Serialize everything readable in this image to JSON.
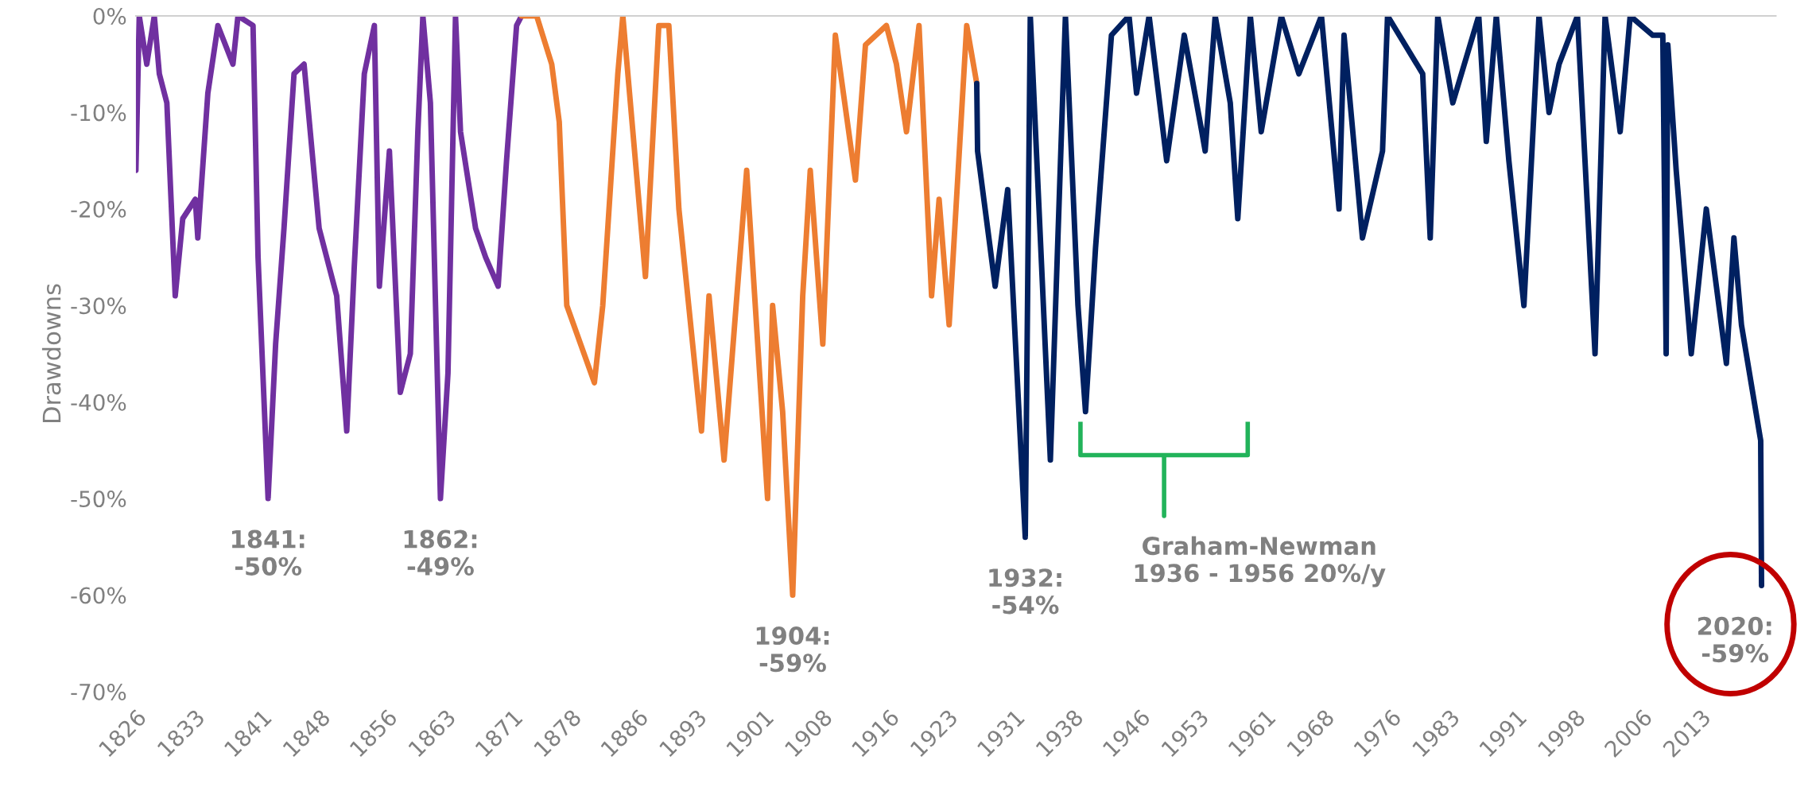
{
  "chart_data": {
    "type": "line",
    "ylabel": "Drawdowns",
    "series": [
      {
        "color": "#7030a0",
        "x": [
          1826.0,
          1826.4,
          1827.3,
          1828.2,
          1828.8,
          1829.7,
          1830.7,
          1831.6,
          1833.1,
          1833.4,
          1834.6,
          1835.8,
          1837.6,
          1838.2,
          1840.0,
          1840.6,
          1841.8,
          1842.7,
          1843.7,
          1844.9,
          1846.1,
          1847.9,
          1850.0,
          1851.2,
          1852.1,
          1853.3,
          1854.5,
          1855.1,
          1856.3,
          1857.6,
          1858.8,
          1859.7,
          1860.3,
          1861.2,
          1862.4,
          1863.3,
          1864.2,
          1864.8,
          1866.6,
          1867.8,
          1869.3,
          1870.3,
          1871.5,
          1872.1
        ],
        "values": [
          -16,
          0,
          -5,
          0,
          -6,
          -9,
          -29,
          -21,
          -19,
          -23,
          -8,
          -1,
          -5,
          0,
          -1,
          -25,
          -50,
          -34,
          -22,
          -6,
          -5,
          -22,
          -29,
          -43,
          -26,
          -6,
          -1,
          -28,
          -14,
          -39,
          -35,
          -12,
          0,
          -9,
          -50,
          -37,
          0,
          -12,
          -22,
          -25,
          -28,
          -15,
          -1,
          0
        ]
      },
      {
        "color": "#ed7d31",
        "x": [
          1872.1,
          1873.9,
          1875.7,
          1876.6,
          1877.5,
          1880.8,
          1881.8,
          1883.6,
          1884.2,
          1886.9,
          1888.5,
          1889.7,
          1890.9,
          1893.6,
          1894.5,
          1896.3,
          1899.0,
          1901.5,
          1902.1,
          1903.3,
          1904.5,
          1905.7,
          1906.6,
          1908.1,
          1909.6,
          1912.0,
          1913.2,
          1915.7,
          1916.9,
          1918.1,
          1919.6,
          1921.1,
          1922.0,
          1923.2,
          1925.3,
          1926.5
        ],
        "values": [
          0,
          0,
          -5,
          -11,
          -30,
          -38,
          -30,
          -6,
          0,
          -27,
          -1,
          -1,
          -20,
          -43,
          -29,
          -46,
          -16,
          -50,
          -30,
          -41,
          -60,
          -29,
          -16,
          -34,
          -2,
          -17,
          -3,
          -1,
          -5,
          -12,
          -1,
          -29,
          -19,
          -32,
          -1,
          -7
        ]
      },
      {
        "color": "#002060",
        "x": [
          1926.5,
          1926.6,
          1928.7,
          1930.2,
          1932.3,
          1932.9,
          1935.3,
          1937.1,
          1938.6,
          1939.5,
          1940.7,
          1942.6,
          1944.7,
          1945.6,
          1947.1,
          1949.2,
          1951.3,
          1953.4,
          1953.8,
          1955.0,
          1956.8,
          1957.7,
          1959.2,
          1960.5,
          1962.9,
          1965.0,
          1967.7,
          1969.8,
          1970.4,
          1972.6,
          1975.0,
          1975.6,
          1979.8,
          1980.7,
          1981.6,
          1983.4,
          1986.5,
          1987.4,
          1988.6,
          1990.1,
          1991.9,
          1993.7,
          1994.9,
          1996.1,
          1998.3,
          2000.4,
          2001.6,
          2003.4,
          2004.6,
          2007.3,
          2008.5,
          2008.9,
          2009.1,
          2010.1,
          2011.9,
          2013.7,
          2016.1,
          2017.0,
          2017.9,
          2020.2,
          2020.3
        ],
        "values": [
          -7,
          -14,
          -28,
          -18,
          -54,
          0,
          -46,
          0,
          -30,
          -41,
          -24,
          -2,
          0,
          -8,
          0,
          -15,
          -2,
          -12,
          -14,
          0,
          -9,
          -21,
          0,
          -12,
          0,
          -6,
          0,
          -20,
          -2,
          -23,
          -14,
          0,
          -6,
          -23,
          0,
          -9,
          0,
          -13,
          0,
          -15,
          -30,
          0,
          -10,
          -5,
          0,
          -35,
          0,
          -12,
          0,
          -2,
          -2,
          -35,
          -3,
          -16,
          -35,
          -20,
          -36,
          -23,
          -32,
          -44,
          -59
        ]
      }
    ],
    "xlim": [
      1826,
      2022
    ],
    "ylim": [
      -70,
      0
    ],
    "xticks": [
      1826,
      1833,
      1841,
      1848,
      1856,
      1863,
      1871,
      1878,
      1886,
      1893,
      1901,
      1908,
      1916,
      1923,
      1931,
      1938,
      1946,
      1953,
      1961,
      1968,
      1976,
      1983,
      1991,
      1998,
      2006,
      2013
    ],
    "yticks": [
      {
        "value": 0,
        "label": "0%"
      },
      {
        "value": -10,
        "label": "-10%"
      },
      {
        "value": -20,
        "label": "-20%"
      },
      {
        "value": -30,
        "label": "-30%"
      },
      {
        "value": -40,
        "label": "-40%"
      },
      {
        "value": -50,
        "label": "-50%"
      },
      {
        "value": -60,
        "label": "-60%"
      },
      {
        "value": -70,
        "label": "-70%"
      }
    ],
    "grid": false,
    "marker": "none",
    "line_style": "solid",
    "annotations": [
      {
        "text": "1841:\n-50%",
        "x": 1841.8,
        "y": -50
      },
      {
        "text": "1862:\n-49%",
        "x": 1862.4,
        "y": -50
      },
      {
        "text": "1904:\n-59%",
        "x": 1904.5,
        "y": -60
      },
      {
        "text": "1932:\n-54%",
        "x": 1932.3,
        "y": -54
      },
      "Graham-Newman\n1936 - 1956 20%/y",
      {
        "text": "2020:\n-59%",
        "x": 2020.3,
        "y": -59
      }
    ]
  }
}
